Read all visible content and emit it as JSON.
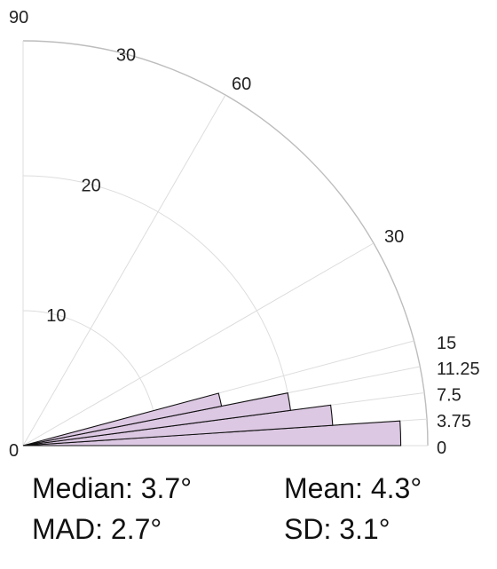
{
  "chart_data": {
    "type": "rose",
    "radial_axis": {
      "ticks": [
        0,
        10,
        20,
        30
      ],
      "tick_labels": [
        "0",
        "10",
        "20",
        "30"
      ],
      "max": 30
    },
    "angular_axis": {
      "unit": "degrees",
      "range": [
        0,
        90
      ],
      "tick_labels": [
        {
          "angle": 90,
          "label": "90"
        },
        {
          "angle": 60,
          "label": "60"
        },
        {
          "angle": 30,
          "label": "30"
        },
        {
          "angle": 15,
          "label": "15"
        },
        {
          "angle": 11.25,
          "label": "11.25"
        },
        {
          "angle": 7.5,
          "label": "7.5"
        },
        {
          "angle": 3.75,
          "label": "3.75"
        },
        {
          "angle": 0,
          "label": "0"
        }
      ]
    },
    "bins": [
      {
        "start": 0,
        "end": 3.75,
        "count": 28
      },
      {
        "start": 3.75,
        "end": 7.5,
        "count": 23
      },
      {
        "start": 7.5,
        "end": 11.25,
        "count": 20
      },
      {
        "start": 11.25,
        "end": 15,
        "count": 15
      }
    ],
    "bar_color": "#dcc8e3",
    "bar_edge_color": "#111111",
    "grid": true
  },
  "stats": {
    "median": "Median: 3.7°",
    "mean": "Mean: 4.3°",
    "mad": "MAD: 2.7°",
    "sd": "SD: 3.1°"
  }
}
